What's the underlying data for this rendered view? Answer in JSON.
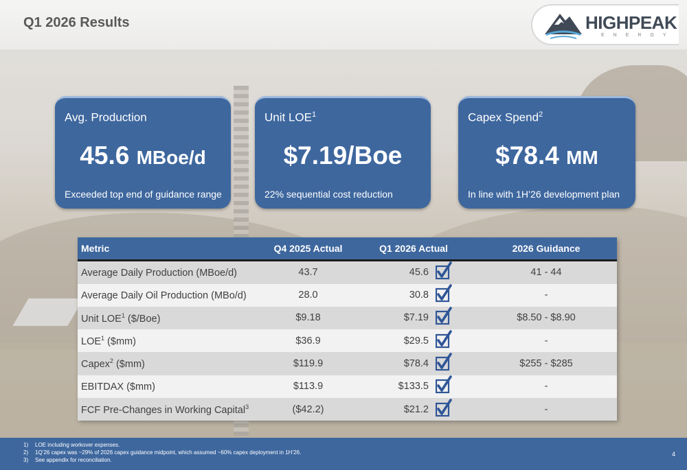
{
  "header": {
    "title": "Q1 2026 Results",
    "logo": {
      "name": "HIGHPEAK",
      "sub": "ENERGY"
    }
  },
  "cards": [
    {
      "title": "Avg. Production",
      "superscript": "",
      "value": "45.6",
      "unit": "MBoe/d",
      "note": "Exceeded top end of guidance range"
    },
    {
      "title": "Unit LOE",
      "superscript": "1",
      "value": "$7.19/Boe",
      "unit": "",
      "note": "22% sequential cost reduction"
    },
    {
      "title": "Capex Spend",
      "superscript": "2",
      "value": "$78.4",
      "unit": "MM",
      "note": "In line with 1H’26 development plan"
    }
  ],
  "table": {
    "headers": {
      "metric": "Metric",
      "q4": "Q4 2025 Actual",
      "q1": "Q1 2026  Actual",
      "guidance": "2026 Guidance"
    },
    "rows": [
      {
        "metric": "Average Daily Production (MBoe/d)",
        "sup": "",
        "suffix": "",
        "q4": "43.7",
        "q1": "45.6",
        "guidance": "41 - 44"
      },
      {
        "metric": "Average Daily Oil Production (MBo/d)",
        "sup": "",
        "suffix": "",
        "q4": "28.0",
        "q1": "30.8",
        "guidance": "-"
      },
      {
        "metric": "Unit LOE",
        "sup": "1",
        "suffix": " ($/Boe)",
        "q4": "$9.18",
        "q1": "$7.19",
        "guidance": "$8.50 - $8.90"
      },
      {
        "metric": "LOE",
        "sup": "1",
        "suffix": " ($mm)",
        "q4": "$36.9",
        "q1": "$29.5",
        "guidance": "-"
      },
      {
        "metric": "Capex",
        "sup": "2",
        "suffix": " ($mm)",
        "q4": "$119.9",
        "q1": "$78.4",
        "guidance": "$255 - $285"
      },
      {
        "metric": "EBITDAX ($mm)",
        "sup": "",
        "suffix": "",
        "q4": "$113.9",
        "q1": "$133.5",
        "guidance": "-"
      },
      {
        "metric": "FCF Pre-Changes in Working Capital",
        "sup": "3",
        "suffix": "",
        "q4": "($42.2)",
        "q1": "$21.2",
        "guidance": "-"
      }
    ]
  },
  "footnotes": [
    {
      "num": "1)",
      "text": "LOE including workover expenses."
    },
    {
      "num": "2)",
      "text": "1Q’26 capex was ~29% of 2026 capex guidance midpoint, which assumed ~60% capex deployment in 1H’26."
    },
    {
      "num": "3)",
      "text": "See appendix for reconciliation."
    }
  ],
  "page_number": "4",
  "colors": {
    "primary_blue": "#3e679e",
    "check_blue": "#2f5597",
    "logo_accent": "#58a7d8"
  }
}
